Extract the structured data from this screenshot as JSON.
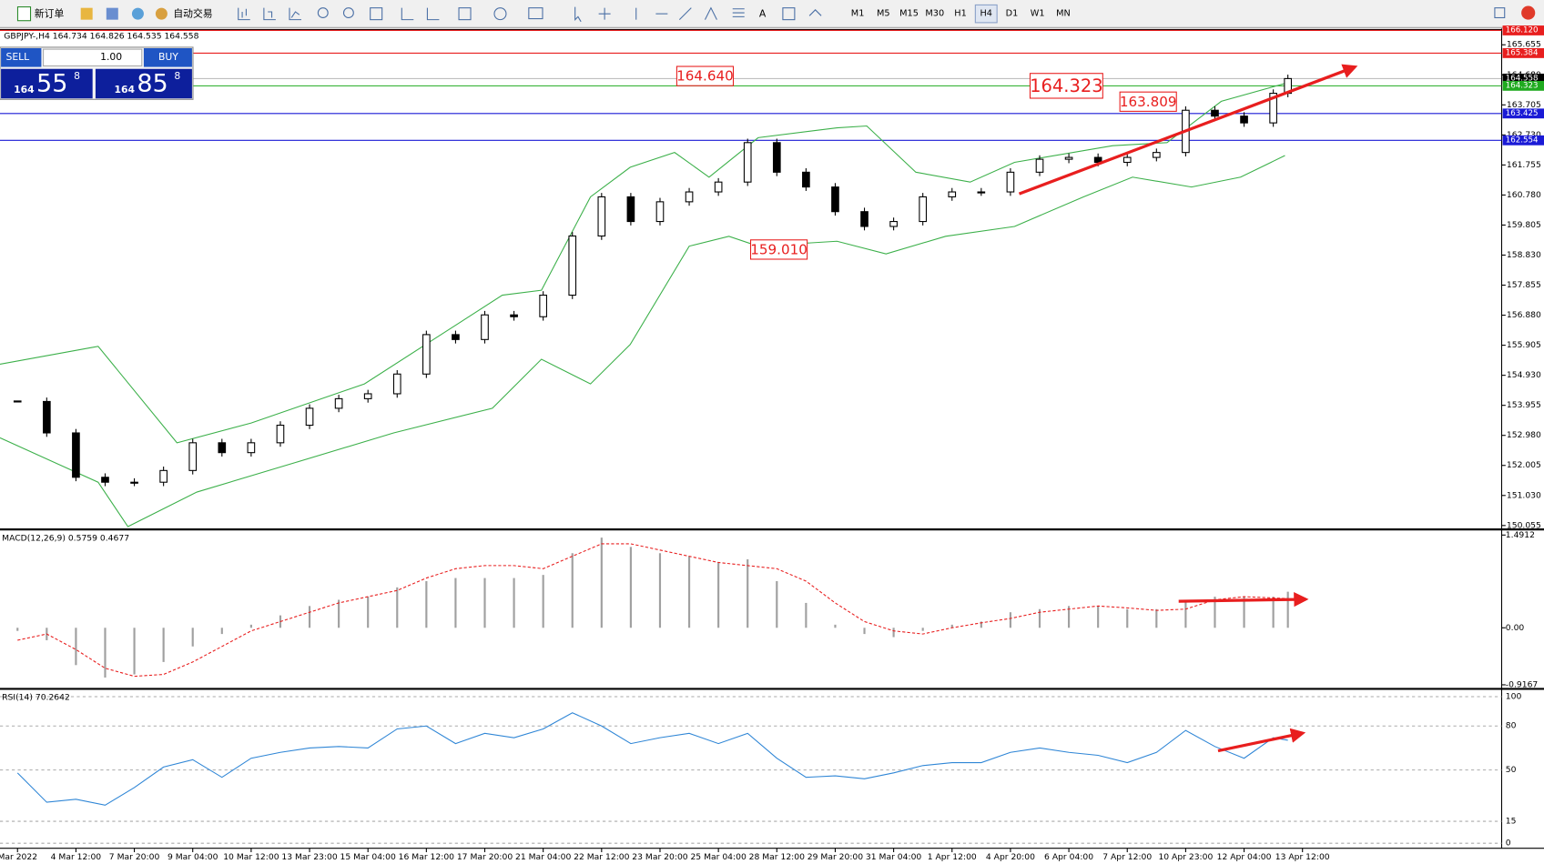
{
  "toolbar": {
    "new_order": "新订单",
    "auto_trading": "自动交易",
    "timeframes": [
      "M1",
      "M5",
      "M15",
      "M30",
      "H1",
      "H4",
      "D1",
      "W1",
      "MN"
    ],
    "active_timeframe": "H4"
  },
  "trade_panel": {
    "sell": "SELL",
    "buy": "BUY",
    "volume": "1.00",
    "sell_price": {
      "big": "164",
      "pips": "55",
      "point": "8"
    },
    "buy_price": {
      "big": "164",
      "pips": "85",
      "point": "8"
    }
  },
  "chart_data": {
    "type": "candlestick",
    "symbol_info": "GBPJPY-,H4  164.734 164.826 164.535 164.558",
    "color": "#000000",
    "x": [
      0,
      0.5,
      1,
      1.5,
      2,
      2.5,
      3,
      3.5,
      4,
      4.5,
      5,
      5.5,
      6,
      6.5,
      7,
      7.5,
      8,
      8.5,
      9,
      9.5,
      10,
      10.5,
      11,
      11.5,
      12,
      12.5,
      13,
      13.5,
      14,
      14.5,
      15,
      15.5,
      16,
      16.5,
      17,
      17.5,
      18,
      18.5,
      19,
      19.5,
      20,
      20.5,
      21,
      21.5,
      21.75
    ],
    "values": [
      154.08,
      153.06,
      151.62,
      151.46,
      151.46,
      151.84,
      152.74,
      152.42,
      152.74,
      153.31,
      153.86,
      154.17,
      154.33,
      154.97,
      156.25,
      156.09,
      156.89,
      156.83,
      157.53,
      159.45,
      160.72,
      159.92,
      160.56,
      160.88,
      161.2,
      162.48,
      161.52,
      161.04,
      160.24,
      159.76,
      159.92,
      160.72,
      160.88,
      160.88,
      161.52,
      161.94,
      162.0,
      161.84,
      162.0,
      162.16,
      163.53,
      163.34,
      163.12,
      164.08,
      164.558
    ],
    "xlim": [
      -0.3,
      25.41
    ],
    "ylim": [
      149.96,
      166.15
    ],
    "xticks": [
      {
        "value": 0,
        "label": "Mar 2022"
      },
      {
        "value": 1,
        "label": "4 Mar 12:00"
      },
      {
        "value": 2,
        "label": "7 Mar 20:00"
      },
      {
        "value": 3,
        "label": "9 Mar 04:00"
      },
      {
        "value": 4,
        "label": "10 Mar 12:00"
      },
      {
        "value": 5,
        "label": "13 Mar 23:00"
      },
      {
        "value": 6,
        "label": "15 Mar 04:00"
      },
      {
        "value": 7,
        "label": "16 Mar 12:00"
      },
      {
        "value": 8,
        "label": "17 Mar 20:00"
      },
      {
        "value": 9,
        "label": "21 Mar 04:00"
      },
      {
        "value": 10,
        "label": "22 Mar 12:00"
      },
      {
        "value": 11,
        "label": "23 Mar 20:00"
      },
      {
        "value": 12,
        "label": "25 Mar 04:00"
      },
      {
        "value": 13,
        "label": "28 Mar 12:00"
      },
      {
        "value": 14,
        "label": "29 Mar 20:00"
      },
      {
        "value": 15,
        "label": "31 Mar 04:00"
      },
      {
        "value": 16,
        "label": "1 Apr 12:00"
      },
      {
        "value": 17,
        "label": "4 Apr 20:00"
      },
      {
        "value": 18,
        "label": "6 Apr 04:00"
      },
      {
        "value": 19,
        "label": "7 Apr 12:00"
      },
      {
        "value": 20,
        "label": "10 Apr 23:00"
      },
      {
        "value": 21,
        "label": "12 Apr 04:00"
      },
      {
        "value": 22,
        "label": "13 Apr 12:00"
      }
    ],
    "yticks": [
      150.055,
      {
        "value": 151.03,
        "label": "151.030"
      },
      152.005,
      {
        "value": 152.98,
        "label": "152.980"
      },
      153.955,
      {
        "value": 154.93,
        "label": "154.930"
      },
      155.905,
      {
        "value": 156.88,
        "label": "156.880"
      },
      157.855,
      {
        "value": 158.83,
        "label": "158.830"
      },
      159.805,
      {
        "value": 160.78,
        "label": "160.780"
      },
      161.755,
      {
        "value": 162.73,
        "label": "162.730"
      },
      163.705,
      {
        "value": 164.68,
        "label": "164.680"
      },
      165.655
    ],
    "levels": [
      {
        "value": 166.12,
        "label": "166.120",
        "color": "#e81e1e"
      },
      {
        "value": 165.384,
        "label": "165.384",
        "color": "#e81e1e"
      },
      {
        "value": 164.558,
        "label": "164.558",
        "color": "#000000"
      },
      {
        "value": 164.323,
        "label": "164.323",
        "color": "#1faa1f"
      },
      {
        "value": 163.425,
        "label": "163.425",
        "color": "#1a1ad6"
      },
      {
        "value": 162.554,
        "label": "162.554",
        "color": "#1a1ad6"
      }
    ],
    "annotations": [
      {
        "value": 164.64,
        "label": "164.640"
      },
      {
        "value": 164.323,
        "label": "164.323"
      },
      {
        "value": 163.809,
        "label": "163.809"
      },
      {
        "value": 159.01,
        "label": "159.010"
      }
    ],
    "bands": [
      {
        "color": "#3cb04a",
        "x": [
          -0.3,
          1.38,
          2.73,
          4.0,
          5.94,
          7.12,
          8.3,
          8.97,
          9.81,
          10.49,
          11.25,
          11.84,
          12.68,
          14.03,
          14.54,
          15.38,
          16.31,
          17.07,
          18.75,
          19.68,
          20.61,
          21.7
        ],
        "values": [
          155.29,
          155.87,
          152.74,
          153.38,
          154.65,
          156.09,
          157.53,
          157.69,
          160.72,
          161.68,
          162.16,
          161.36,
          162.64,
          162.96,
          163.02,
          161.52,
          161.2,
          161.84,
          162.38,
          162.48,
          163.82,
          164.4
        ]
      },
      {
        "color": "#3cb04a",
        "x": [
          -0.3,
          1.38,
          1.89,
          3.07,
          4.76,
          6.44,
          8.13,
          8.97,
          9.81,
          10.49,
          11.5,
          12.18,
          12.68,
          14.03,
          14.87,
          15.89,
          17.07,
          18.25,
          19.09,
          20.1,
          20.94,
          21.7
        ],
        "values": [
          152.9,
          151.46,
          150.02,
          151.14,
          152.1,
          153.06,
          153.86,
          155.45,
          154.65,
          155.93,
          159.12,
          159.44,
          159.12,
          159.28,
          158.87,
          159.44,
          159.76,
          160.72,
          161.36,
          161.04,
          161.36,
          162.06
        ]
      }
    ],
    "macd": {
      "title": "MACD(12,26,9) 0.5759 0.4677",
      "ylim": [
        -0.95,
        1.55
      ],
      "yticks": [
        1.4912,
        {
          "value": 0,
          "label": "0.00"
        },
        -0.9167
      ],
      "histogram": {
        "color": "#a0a0a0",
        "values": [
          -0.05,
          -0.2,
          -0.6,
          -0.8,
          -0.75,
          -0.55,
          -0.3,
          -0.1,
          0.05,
          0.2,
          0.35,
          0.45,
          0.5,
          0.65,
          0.75,
          0.8,
          0.8,
          0.8,
          0.85,
          1.2,
          1.45,
          1.3,
          1.2,
          1.15,
          1.05,
          1.1,
          0.75,
          0.4,
          0.05,
          -0.1,
          -0.15,
          -0.05,
          0.05,
          0.1,
          0.25,
          0.3,
          0.35,
          0.35,
          0.3,
          0.3,
          0.45,
          0.5,
          0.5,
          0.5,
          0.58
        ]
      },
      "signal": {
        "color": "#e81e1e",
        "values": [
          -0.2,
          -0.1,
          -0.35,
          -0.65,
          -0.78,
          -0.75,
          -0.55,
          -0.3,
          -0.05,
          0.1,
          0.25,
          0.4,
          0.5,
          0.6,
          0.8,
          0.95,
          1.0,
          1.0,
          0.95,
          1.15,
          1.35,
          1.35,
          1.25,
          1.15,
          1.05,
          1.0,
          0.95,
          0.75,
          0.4,
          0.1,
          -0.05,
          -0.1,
          0,
          0.08,
          0.15,
          0.25,
          0.3,
          0.35,
          0.32,
          0.28,
          0.3,
          0.45,
          0.5,
          0.48,
          0.47
        ]
      }
    },
    "rsi": {
      "title": "RSI(14) 70.2642",
      "ylim": [
        -3.4,
        104
      ],
      "yticks": [
        100,
        80,
        50,
        15,
        0
      ],
      "color": "#2f86d6",
      "values": [
        48,
        28,
        30,
        26,
        38,
        52,
        57,
        45,
        58,
        62,
        65,
        66,
        65,
        78,
        80,
        68,
        75,
        72,
        78,
        89,
        80,
        68,
        72,
        75,
        68,
        75,
        58,
        45,
        46,
        44,
        48,
        53,
        55,
        55,
        62,
        65,
        62,
        60,
        55,
        62,
        77,
        66,
        58,
        72,
        70.26
      ]
    }
  }
}
